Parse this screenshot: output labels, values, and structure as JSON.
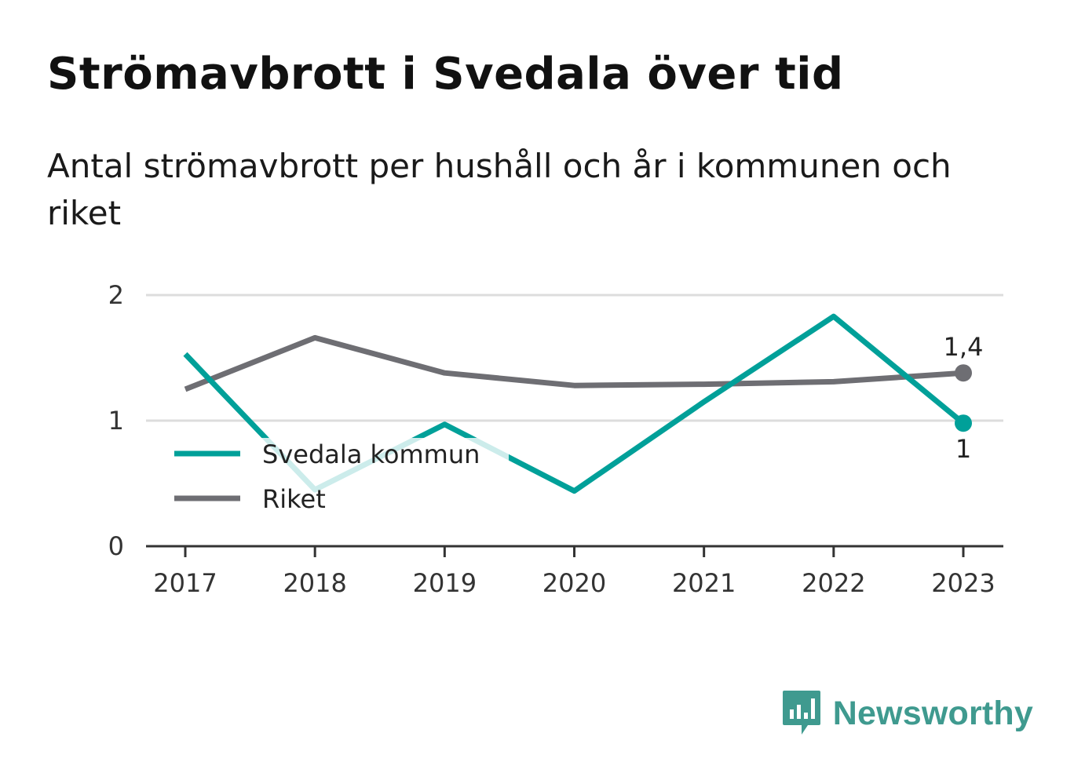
{
  "header": {
    "title": "Strömavbrott i Svedala över tid",
    "subtitle": "Antal strömavbrott per hushåll och år i kommunen och riket"
  },
  "chart_data": {
    "type": "line",
    "title": "Strömavbrott i Svedala över tid",
    "subtitle": "Antal strömavbrott per hushåll och år i kommunen och riket",
    "x": [
      "2017",
      "2018",
      "2019",
      "2020",
      "2021",
      "2022",
      "2023"
    ],
    "y_ticks": [
      "0",
      "1",
      "2"
    ],
    "ylim": [
      0,
      2
    ],
    "grid": true,
    "legend_position": "inside-lower-left",
    "series": [
      {
        "name": "Svedala kommun",
        "color": "#00a099",
        "values": [
          1.53,
          0.45,
          0.97,
          0.44,
          1.15,
          1.83,
          0.98
        ],
        "end_label": "1"
      },
      {
        "name": "Riket",
        "color": "#6e6e73",
        "values": [
          1.25,
          1.66,
          1.38,
          1.28,
          1.29,
          1.31,
          1.38
        ],
        "end_label": "1,4"
      }
    ]
  },
  "brand": {
    "name": "Newsworthy",
    "icon": "newsworthy-logo-icon",
    "color": "#3f9a8f"
  }
}
